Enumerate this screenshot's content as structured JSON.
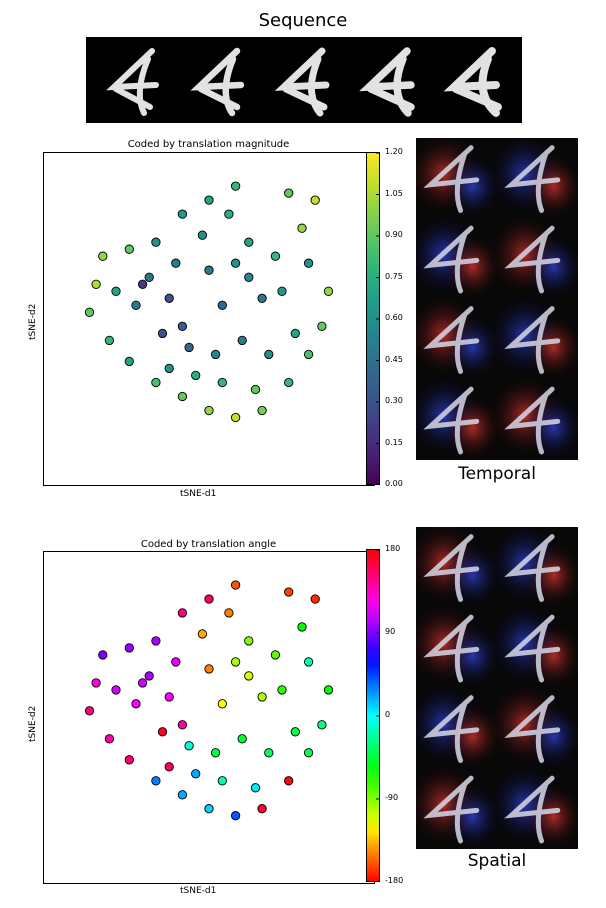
{
  "sequence": {
    "title": "Sequence",
    "frames": 5
  },
  "heatmaps": {
    "temporal_caption": "Temporal",
    "spatial_caption": "Spatial",
    "temporal_tints": [
      [
        "r",
        "b"
      ],
      [
        "b",
        "r"
      ],
      [
        "r",
        "b"
      ],
      [
        "b",
        "r"
      ]
    ],
    "spatial_tints": [
      [
        "r",
        "b"
      ],
      [
        "r",
        "b"
      ],
      [
        "b",
        "r"
      ],
      [
        "r",
        "b"
      ]
    ]
  },
  "chart_data": [
    {
      "type": "scatter",
      "title": "Coded by translation magnitude",
      "xlabel": "tSNE-d1",
      "ylabel": "tSNE-d2",
      "colorbar": {
        "colormap": "viridis",
        "min": 0.0,
        "max": 1.2,
        "ticks": [
          "0.00",
          "0.15",
          "0.30",
          "0.45",
          "0.60",
          "0.75",
          "0.90",
          "1.05",
          "1.20"
        ]
      },
      "points": [
        [
          -0.5,
          0.2,
          0.2
        ],
        [
          -0.3,
          0.1,
          0.3
        ],
        [
          -0.2,
          -0.1,
          0.35
        ],
        [
          0.1,
          0.05,
          0.4
        ],
        [
          0.0,
          0.3,
          0.5
        ],
        [
          0.3,
          0.5,
          0.7
        ],
        [
          0.5,
          0.4,
          0.8
        ],
        [
          0.7,
          0.6,
          1.0
        ],
        [
          0.8,
          0.8,
          1.1
        ],
        [
          0.6,
          0.85,
          0.9
        ],
        [
          0.2,
          0.9,
          0.8
        ],
        [
          0.0,
          0.8,
          0.7
        ],
        [
          -0.2,
          0.7,
          0.65
        ],
        [
          -0.4,
          0.5,
          0.6
        ],
        [
          -0.6,
          0.45,
          0.9
        ],
        [
          -0.8,
          0.4,
          1.0
        ],
        [
          -0.85,
          0.2,
          1.05
        ],
        [
          -0.9,
          0.0,
          0.9
        ],
        [
          -0.75,
          -0.2,
          0.8
        ],
        [
          -0.6,
          -0.35,
          0.7
        ],
        [
          -0.4,
          -0.5,
          0.85
        ],
        [
          -0.2,
          -0.6,
          0.9
        ],
        [
          0.0,
          -0.7,
          1.0
        ],
        [
          0.2,
          -0.75,
          1.1
        ],
        [
          0.4,
          -0.7,
          0.95
        ],
        [
          0.6,
          -0.5,
          0.8
        ],
        [
          0.75,
          -0.3,
          0.85
        ],
        [
          0.85,
          -0.1,
          0.9
        ],
        [
          0.9,
          0.15,
          1.0
        ],
        [
          0.75,
          0.35,
          0.6
        ],
        [
          0.4,
          0.1,
          0.45
        ],
        [
          0.25,
          -0.2,
          0.5
        ],
        [
          0.05,
          -0.3,
          0.55
        ],
        [
          -0.15,
          -0.25,
          0.4
        ],
        [
          -0.35,
          -0.15,
          0.3
        ],
        [
          0.45,
          -0.3,
          0.6
        ],
        [
          0.3,
          0.25,
          0.55
        ],
        [
          -0.05,
          0.55,
          0.6
        ],
        [
          0.15,
          0.7,
          0.75
        ],
        [
          -0.55,
          0.05,
          0.5
        ],
        [
          -0.7,
          0.15,
          0.7
        ],
        [
          0.55,
          0.15,
          0.65
        ],
        [
          0.65,
          -0.15,
          0.7
        ],
        [
          -0.3,
          -0.4,
          0.6
        ],
        [
          -0.1,
          -0.45,
          0.75
        ],
        [
          0.1,
          -0.5,
          0.8
        ],
        [
          0.35,
          -0.55,
          0.9
        ],
        [
          -0.45,
          0.25,
          0.45
        ],
        [
          0.2,
          0.35,
          0.6
        ],
        [
          -0.25,
          0.35,
          0.5
        ]
      ]
    },
    {
      "type": "scatter",
      "title": "Coded by translation angle",
      "xlabel": "tSNE-d1",
      "ylabel": "tSNE-d2",
      "colorbar": {
        "colormap": "hsv",
        "min": -180,
        "max": 180,
        "ticks": [
          "-180",
          "-90",
          "0",
          "90",
          "180"
        ]
      },
      "points": [
        [
          -0.5,
          0.2,
          110
        ],
        [
          -0.3,
          0.1,
          120
        ],
        [
          -0.2,
          -0.1,
          140
        ],
        [
          0.1,
          0.05,
          -120
        ],
        [
          0.0,
          0.3,
          -150
        ],
        [
          0.3,
          0.5,
          -90
        ],
        [
          0.5,
          0.4,
          -80
        ],
        [
          0.7,
          0.6,
          -60
        ],
        [
          0.8,
          0.8,
          -170
        ],
        [
          0.6,
          0.85,
          -165
        ],
        [
          0.2,
          0.9,
          -160
        ],
        [
          0.0,
          0.8,
          160
        ],
        [
          -0.2,
          0.7,
          150
        ],
        [
          -0.4,
          0.5,
          100
        ],
        [
          -0.6,
          0.45,
          95
        ],
        [
          -0.8,
          0.4,
          90
        ],
        [
          -0.85,
          0.2,
          130
        ],
        [
          -0.9,
          0.0,
          150
        ],
        [
          -0.75,
          -0.2,
          140
        ],
        [
          -0.6,
          -0.35,
          155
        ],
        [
          -0.4,
          -0.5,
          30
        ],
        [
          -0.2,
          -0.6,
          20
        ],
        [
          0.0,
          -0.7,
          10
        ],
        [
          0.2,
          -0.75,
          40
        ],
        [
          0.4,
          -0.7,
          170
        ],
        [
          0.6,
          -0.5,
          175
        ],
        [
          0.75,
          -0.3,
          -40
        ],
        [
          0.85,
          -0.1,
          -30
        ],
        [
          0.9,
          0.15,
          -60
        ],
        [
          0.75,
          0.35,
          -20
        ],
        [
          0.4,
          0.1,
          -100
        ],
        [
          0.25,
          -0.2,
          -50
        ],
        [
          0.05,
          -0.3,
          -45
        ],
        [
          -0.15,
          -0.25,
          -10
        ],
        [
          -0.35,
          -0.15,
          170
        ],
        [
          0.45,
          -0.3,
          -35
        ],
        [
          0.3,
          0.25,
          -110
        ],
        [
          -0.05,
          0.55,
          -140
        ],
        [
          0.15,
          0.7,
          -150
        ],
        [
          -0.55,
          0.05,
          120
        ],
        [
          -0.7,
          0.15,
          110
        ],
        [
          0.55,
          0.15,
          -70
        ],
        [
          0.65,
          -0.15,
          -45
        ],
        [
          -0.3,
          -0.4,
          160
        ],
        [
          -0.1,
          -0.45,
          20
        ],
        [
          0.1,
          -0.5,
          -20
        ],
        [
          0.35,
          -0.55,
          5
        ],
        [
          -0.45,
          0.25,
          100
        ],
        [
          0.2,
          0.35,
          -100
        ],
        [
          -0.25,
          0.35,
          115
        ]
      ]
    }
  ]
}
